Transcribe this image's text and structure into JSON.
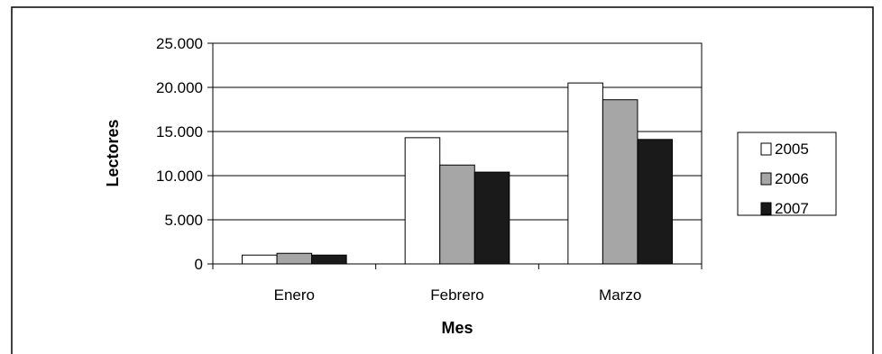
{
  "chart_data": {
    "type": "bar",
    "title": "",
    "xlabel": "Mes",
    "ylabel": "Lectores",
    "categories": [
      "Enero",
      "Febrero",
      "Marzo"
    ],
    "series": [
      {
        "name": "2005",
        "color": "#ffffff",
        "values": [
          1000,
          14300,
          20500
        ]
      },
      {
        "name": "2006",
        "color": "#a6a6a6",
        "values": [
          1200,
          11200,
          18600
        ]
      },
      {
        "name": "2007",
        "color": "#1a1a1a",
        "values": [
          1000,
          10400,
          14100
        ]
      }
    ],
    "ylim": [
      0,
      25000
    ],
    "yticks": [
      0,
      5000,
      10000,
      15000,
      20000,
      25000
    ],
    "ytick_labels": [
      "0",
      "5.000",
      "10.000",
      "15.000",
      "20.000",
      "25.000"
    ],
    "grid": "horizontal",
    "legend_position": "right"
  }
}
